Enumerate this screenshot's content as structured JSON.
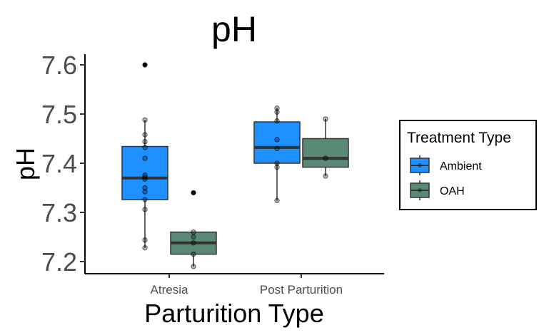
{
  "chart_data": {
    "type": "boxplot",
    "title": "pH",
    "xlabel": "Parturition Type",
    "ylabel": "pH",
    "categories": [
      "Atresia",
      "Post Parturition"
    ],
    "yticks": [
      "7.2",
      "7.3",
      "7.4",
      "7.5",
      "7.6"
    ],
    "ylim": [
      7.17,
      7.62
    ],
    "grid": false,
    "legend": {
      "title": "Treatment Type",
      "placement": "right"
    },
    "series": [
      {
        "name": "Ambient",
        "color": "#1E90FF",
        "boxes": [
          {
            "category": "Atresia",
            "min": 7.228,
            "q1": 7.326,
            "median": 7.37,
            "q3": 7.434,
            "max": 7.488,
            "outliers": [
              7.6
            ],
            "points": [
              7.228,
              7.244,
              7.306,
              7.326,
              7.342,
              7.35,
              7.368,
              7.372,
              7.376,
              7.41,
              7.432,
              7.444,
              7.458,
              7.488,
              7.6
            ]
          },
          {
            "category": "Post Parturition",
            "min": 7.324,
            "q1": 7.4,
            "median": 7.432,
            "q3": 7.484,
            "max": 7.512,
            "outliers": [],
            "points": [
              7.324,
              7.392,
              7.4,
              7.43,
              7.448,
              7.486,
              7.504,
              7.512
            ]
          }
        ]
      },
      {
        "name": "OAH",
        "color": "#5A8A76",
        "boxes": [
          {
            "category": "Atresia",
            "min": 7.19,
            "q1": 7.215,
            "median": 7.238,
            "q3": 7.26,
            "max": 7.26,
            "outliers": [
              7.34
            ],
            "points": [
              7.19,
              7.215,
              7.238,
              7.25,
              7.26,
              7.34
            ]
          },
          {
            "category": "Post Parturition",
            "min": 7.374,
            "q1": 7.392,
            "median": 7.41,
            "q3": 7.45,
            "max": 7.49,
            "outliers": [],
            "points": [
              7.374,
              7.41,
              7.49
            ]
          }
        ]
      }
    ]
  }
}
